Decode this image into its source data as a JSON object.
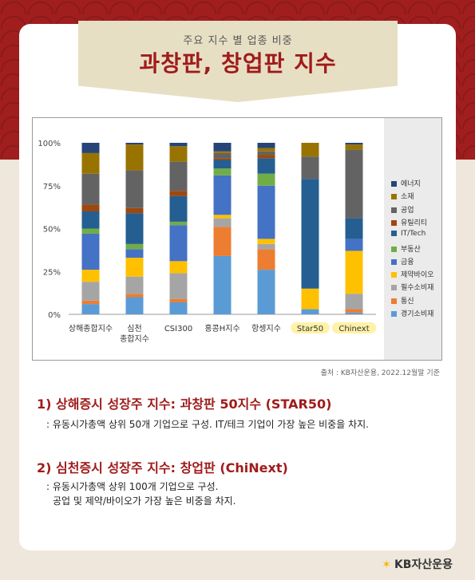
{
  "header": {
    "subtitle": "주요 지수 별 업종 비중",
    "title": "과창판, 창업판 지수"
  },
  "chart_data": {
    "type": "bar",
    "stacked": true,
    "ylim": [
      0,
      100
    ],
    "yticks": [
      "0%",
      "25%",
      "50%",
      "75%",
      "100%"
    ],
    "categories": [
      {
        "lines": [
          "상해종합지수"
        ],
        "highlight": false
      },
      {
        "lines": [
          "심천",
          "종합지수"
        ],
        "highlight": false
      },
      {
        "lines": [
          "CSI300"
        ],
        "highlight": false
      },
      {
        "lines": [
          "홍콩H지수"
        ],
        "highlight": false
      },
      {
        "lines": [
          "항셍지수"
        ],
        "highlight": false
      },
      {
        "lines": [
          "Star50"
        ],
        "highlight": true
      },
      {
        "lines": [
          "Chinext"
        ],
        "highlight": true
      }
    ],
    "series": [
      {
        "name": "경기소비재",
        "color": "#5b9bd5",
        "values": [
          6,
          10,
          7,
          34,
          26,
          3,
          1
        ]
      },
      {
        "name": "통신",
        "color": "#ed7d31",
        "values": [
          2,
          2,
          2,
          17,
          12,
          0,
          2
        ]
      },
      {
        "name": "필수소비재",
        "color": "#a5a5a5",
        "values": [
          11,
          10,
          15,
          5,
          3,
          0,
          9
        ]
      },
      {
        "name": "제약바이오",
        "color": "#ffc000",
        "values": [
          7,
          11,
          7,
          2,
          3,
          12,
          25
        ]
      },
      {
        "name": "금융",
        "color": "#4472c4",
        "values": [
          21,
          5,
          21,
          23,
          31,
          0,
          7
        ]
      },
      {
        "name": "부동산",
        "color": "#70ad47",
        "values": [
          3,
          3,
          2,
          4,
          7,
          0,
          0
        ]
      },
      {
        "name": "IT/Tech",
        "color": "#255e91",
        "values": [
          10,
          18,
          15,
          5,
          9,
          64,
          12
        ]
      },
      {
        "name": "유틸리티",
        "color": "#9e480e",
        "values": [
          4,
          3,
          3,
          1,
          2,
          0,
          0
        ]
      },
      {
        "name": "공업",
        "color": "#636363",
        "values": [
          18,
          22,
          17,
          3,
          2,
          13,
          40
        ]
      },
      {
        "name": "소재",
        "color": "#997300",
        "values": [
          12,
          15,
          9,
          1,
          2,
          8,
          3
        ]
      },
      {
        "name": "에너지",
        "color": "#264478",
        "values": [
          6,
          1,
          2,
          5,
          3,
          0,
          1
        ]
      }
    ],
    "legend_order": [
      "에너지",
      "소재",
      "공업",
      "유틸리티",
      "IT/Tech",
      "부동산",
      "금융",
      "제약바이오",
      "필수소비재",
      "통신",
      "경기소비재"
    ],
    "legend_position": "right",
    "highlight_color": "#fff2a8"
  },
  "source_note": "출처 : KB자산운용, 2022.12월말 기준",
  "sections": [
    {
      "heading": "1) 상해증시 성장주 지수: 과창판 50지수 (STAR50)",
      "body": [
        ": 유동시가총액 상위 50개 기업으로 구성. IT/테크 기업이 가장 높은 비중을 차지."
      ]
    },
    {
      "heading": "2) 심천증시 성장주 지수: 창업판 (ChiNext)",
      "body": [
        ": 유동시가총액 상위 100개 기업으로 구성.",
        "공업 및 제약/바이오가 가장 높은 비중을 차지."
      ]
    }
  ],
  "footer": {
    "logo_text": "KB자산운용",
    "logo_icon": "kb-star-icon"
  }
}
